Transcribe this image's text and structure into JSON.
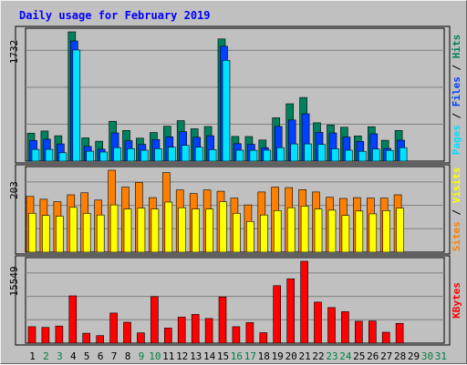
{
  "chart_data": {
    "type": "bar",
    "title": "Daily usage for February 2019",
    "colors": {
      "hits": "#00805c",
      "files": "#0040ff",
      "pages": "#00e0ff",
      "visits": "#ff8000",
      "sites": "#ffff00",
      "kbytes": "#ff0000",
      "weekday_label": "#000000",
      "weekend_label": "#008040",
      "title": "#0000ff",
      "background": "#c0c0c0"
    },
    "days": [
      "1",
      "2",
      "3",
      "4",
      "5",
      "6",
      "7",
      "8",
      "9",
      "10",
      "11",
      "12",
      "13",
      "14",
      "15",
      "16",
      "17",
      "18",
      "19",
      "20",
      "21",
      "22",
      "23",
      "24",
      "25",
      "26",
      "27",
      "28",
      "29",
      "30",
      "31"
    ],
    "weekend_days": [
      "2",
      "3",
      "9",
      "10",
      "16",
      "17",
      "23",
      "24",
      "30",
      "31"
    ],
    "panels": [
      {
        "id": "hits",
        "ymax_label": "1732",
        "ymax": 1732,
        "right_label": [
          {
            "text": "Pages",
            "color": "#00e0ff"
          },
          {
            "text": " / ",
            "color": "#000000"
          },
          {
            "text": "Files",
            "color": "#0040ff"
          },
          {
            "text": " / ",
            "color": "#000000"
          },
          {
            "text": "Hits",
            "color": "#00805c"
          }
        ],
        "series": [
          {
            "name": "Hits",
            "color": "#00805c",
            "values": [
              373,
              404,
              340,
              1732,
              311,
              267,
              534,
              411,
              307,
              383,
              467,
              543,
              433,
              463,
              1637,
              331,
              329,
              283,
              581,
              768,
              853,
              514,
              486,
              454,
              338,
              461,
              279,
              411,
              0,
              0,
              0
            ]
          },
          {
            "name": "Files",
            "color": "#0040ff",
            "values": [
              277,
              294,
              231,
              1610,
              198,
              160,
              378,
              273,
              225,
              289,
              326,
              394,
              319,
              340,
              1539,
              234,
              225,
              180,
              465,
              551,
              634,
              385,
              378,
              323,
              265,
              366,
              170,
              280,
              0,
              0,
              0
            ]
          },
          {
            "name": "Pages",
            "color": "#00e0ff",
            "values": [
              157,
              157,
              112,
              1489,
              133,
              122,
              180,
              167,
              146,
              167,
              187,
              211,
              187,
              154,
              1350,
              146,
              145,
              146,
              180,
              231,
              231,
              224,
              166,
              146,
              132,
              162,
              144,
              180,
              0,
              0,
              0
            ]
          }
        ]
      },
      {
        "id": "visits",
        "ymax_label": "203",
        "ymax": 203,
        "right_label": [
          {
            "text": "Sites",
            "color": "#ff8000"
          },
          {
            "text": " / ",
            "color": "#000000"
          },
          {
            "text": "Visits",
            "color": "#ffff00"
          }
        ],
        "series": [
          {
            "name": "Visits",
            "color": "#ff8000",
            "values": [
              138,
              131,
              125,
              142,
              147,
              129,
              203,
              161,
              173,
              135,
              197,
              154,
              145,
              154,
              151,
              134,
              117,
              149,
              161,
              160,
              155,
              149,
              136,
              133,
              135,
              134,
              134,
              142,
              0,
              0,
              0
            ]
          },
          {
            "name": "Sites",
            "color": "#ffff00",
            "values": [
              96,
              91,
              89,
              111,
              96,
              92,
              117,
              107,
              109,
              107,
              124,
              110,
              107,
              107,
              125,
              96,
              76,
              92,
              103,
              110,
              114,
              107,
              104,
              91,
              102,
              95,
              103,
              109,
              0,
              0,
              0
            ]
          }
        ]
      },
      {
        "id": "kbytes",
        "ymax_label": "15549",
        "ymax": 15549,
        "right_label": [
          {
            "text": "KBytes",
            "color": "#ff0000"
          }
        ],
        "series": [
          {
            "name": "KBytes",
            "color": "#ff0000",
            "values": [
              3120,
              2989,
              3251,
              8980,
              1890,
              1430,
              5720,
              3970,
              1950,
              8840,
              2860,
              4940,
              5460,
              4680,
              8780,
              3120,
              3900,
              1980,
              10920,
              12220,
              15549,
              7800,
              6760,
              5980,
              4160,
              4220,
              2080,
              3770,
              0,
              0,
              0
            ]
          }
        ]
      }
    ]
  }
}
